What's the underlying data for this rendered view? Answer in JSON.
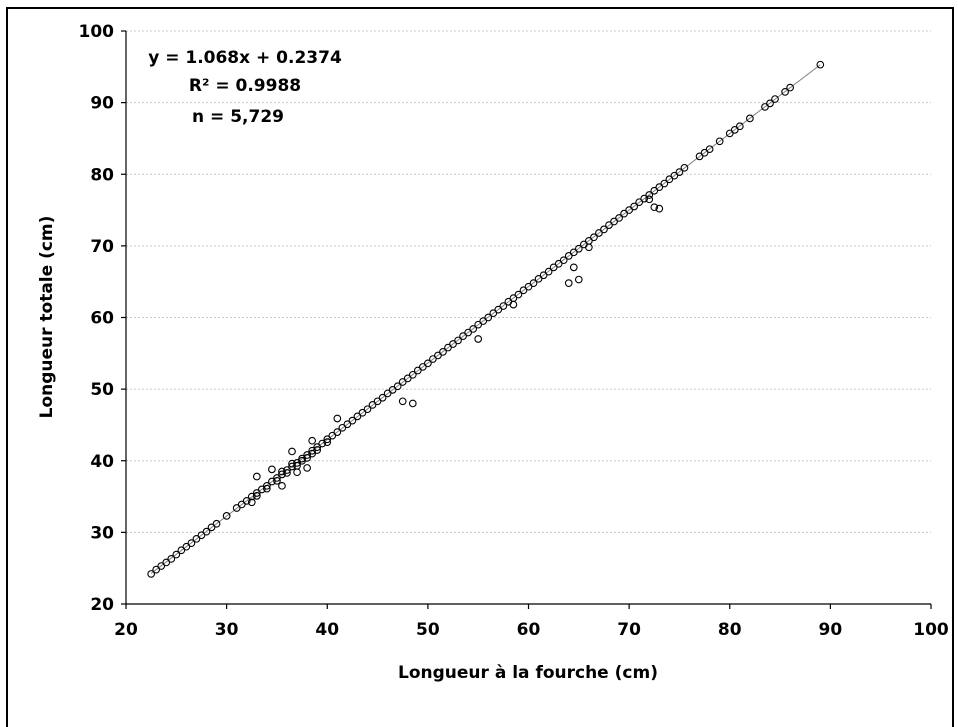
{
  "chart_data": {
    "type": "scatter",
    "title": "",
    "xlabel": "Longueur à la fourche (cm)",
    "ylabel": "Longueur totale (cm)",
    "xlim": [
      20,
      100
    ],
    "ylim": [
      20,
      100
    ],
    "x_ticks": [
      20,
      30,
      40,
      50,
      60,
      70,
      80,
      90,
      100
    ],
    "y_ticks": [
      20,
      30,
      40,
      50,
      60,
      70,
      80,
      90,
      100
    ],
    "x_tick_labels": [
      "20",
      "30",
      "40",
      "50",
      "60",
      "70",
      "80",
      "90",
      "100"
    ],
    "y_tick_labels": [
      "20",
      "30",
      "40",
      "50",
      "60",
      "70",
      "80",
      "90",
      "100"
    ],
    "grid": {
      "horizontal": true,
      "vertical": false,
      "style": "dotted"
    },
    "legend": "none",
    "annotations": [
      "y = 1.068x + 0.2374",
      "R² = 0.9988",
      "n = 5,729"
    ],
    "trendline": {
      "slope": 1.068,
      "intercept": 0.2374,
      "x_range": [
        22.5,
        89
      ]
    },
    "marker": "open-circle",
    "series": [
      {
        "x": [
          22.5,
          23.0,
          23.5,
          24.0,
          24.5,
          25.0,
          25.5,
          26.0,
          26.5,
          27.0,
          27.5,
          28.0,
          28.5,
          29.0,
          30.0,
          31.0,
          31.5,
          32.0,
          32.5,
          33.0,
          33.0,
          33.5,
          34.0,
          34.0,
          34.5,
          35.0,
          35.0,
          35.5,
          35.5,
          36.0,
          36.0,
          36.5,
          36.5,
          37.0,
          37.0,
          37.5,
          37.5,
          38.0,
          38.0,
          38.5,
          38.5,
          39.0,
          39.0,
          39.5,
          40.0,
          40.0,
          40.5,
          41.0,
          41.5,
          42.0,
          42.5,
          43.0,
          43.5,
          44.0,
          44.5,
          45.0,
          45.5,
          46.0,
          46.5,
          47.0,
          47.5,
          48.0,
          48.5,
          49.0,
          49.5,
          50.0,
          50.5,
          51.0,
          51.5,
          52.0,
          52.5,
          53.0,
          53.5,
          54.0,
          54.5,
          55.0,
          55.5,
          56.0,
          56.5,
          57.0,
          57.5,
          58.0,
          58.5,
          59.0,
          59.5,
          60.0,
          60.5,
          61.0,
          61.5,
          62.0,
          62.5,
          63.0,
          63.5,
          64.0,
          64.5,
          65.0,
          65.5,
          66.0,
          66.5,
          67.0,
          67.5,
          68.0,
          68.5,
          69.0,
          69.5,
          70.0,
          70.5,
          71.0,
          71.5,
          72.0,
          72.5,
          73.0,
          73.5,
          74.0,
          74.5,
          75.0,
          75.5,
          77.0,
          77.5,
          78.0,
          79.0,
          80.0,
          80.5,
          81.0,
          82.0,
          83.5,
          84.0,
          84.5,
          85.5,
          86.0,
          89.0,
          33.0,
          32.5,
          34.5,
          36.5,
          38.0,
          41.0,
          47.5,
          48.5,
          55.0,
          58.5,
          64.5,
          65.0,
          64.0,
          66.0,
          72.0,
          72.5,
          73.0,
          38.5,
          37.0,
          35.5
        ],
        "y": [
          24.2,
          24.8,
          25.3,
          25.8,
          26.3,
          26.9,
          27.5,
          28.0,
          28.5,
          29.1,
          29.6,
          30.1,
          30.7,
          31.2,
          32.3,
          33.4,
          33.9,
          34.4,
          35.0,
          35.5,
          35.1,
          36.0,
          36.5,
          36.1,
          37.1,
          37.6,
          37.2,
          38.1,
          38.5,
          38.7,
          38.3,
          39.2,
          39.6,
          39.7,
          39.3,
          40.3,
          40.0,
          40.8,
          40.4,
          41.4,
          41.0,
          41.9,
          41.5,
          42.4,
          43.0,
          42.6,
          43.5,
          44.0,
          44.6,
          45.1,
          45.6,
          46.2,
          46.7,
          47.2,
          47.8,
          48.3,
          48.8,
          49.4,
          49.9,
          50.4,
          51.0,
          51.5,
          52.0,
          52.6,
          53.1,
          53.6,
          54.2,
          54.7,
          55.2,
          55.8,
          56.3,
          56.8,
          57.4,
          57.9,
          58.4,
          59.0,
          59.5,
          60.0,
          60.6,
          61.1,
          61.6,
          62.2,
          62.7,
          63.2,
          63.8,
          64.3,
          64.8,
          65.4,
          65.9,
          66.4,
          67.0,
          67.5,
          68.0,
          68.6,
          69.1,
          69.6,
          70.2,
          70.7,
          71.2,
          71.8,
          72.3,
          72.9,
          73.4,
          73.9,
          74.5,
          75.0,
          75.5,
          76.1,
          76.6,
          77.1,
          77.7,
          78.2,
          78.7,
          79.3,
          79.8,
          80.3,
          80.9,
          82.5,
          83.0,
          83.5,
          84.6,
          85.7,
          86.2,
          86.7,
          87.8,
          89.4,
          89.9,
          90.5,
          91.5,
          92.1,
          95.3,
          37.8,
          34.2,
          38.8,
          41.3,
          39.0,
          45.9,
          48.3,
          48.0,
          57.0,
          61.8,
          67.0,
          65.3,
          64.8,
          69.8,
          76.5,
          75.4,
          75.2,
          42.8,
          38.4,
          36.5
        ]
      }
    ]
  }
}
